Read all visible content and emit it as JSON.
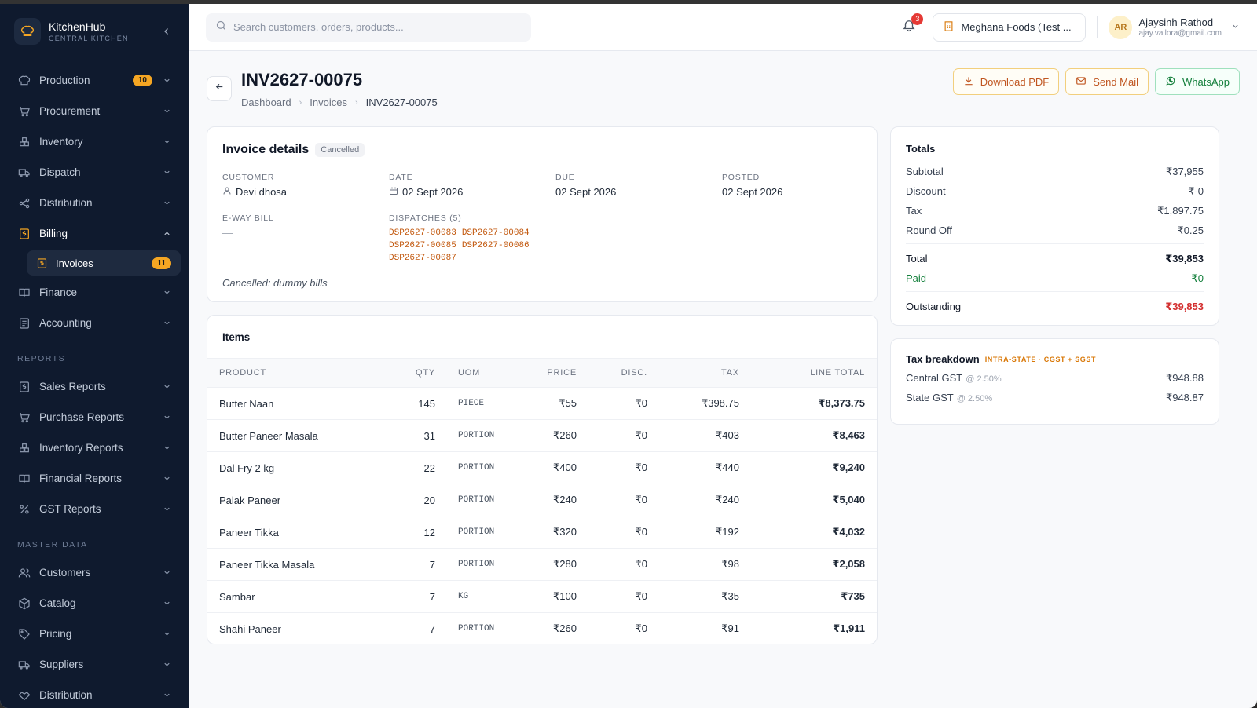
{
  "brand": {
    "name": "KitchenHub",
    "sub": "CENTRAL KITCHEN"
  },
  "sidebar": {
    "items": [
      {
        "label": "Production",
        "badge": "10"
      },
      {
        "label": "Procurement"
      },
      {
        "label": "Inventory"
      },
      {
        "label": "Dispatch"
      },
      {
        "label": "Distribution"
      },
      {
        "label": "Billing"
      },
      {
        "label": "Finance"
      },
      {
        "label": "Accounting"
      }
    ],
    "billing_sub": {
      "label": "Invoices",
      "badge": "11"
    },
    "reports_label": "REPORTS",
    "reports": [
      {
        "label": "Sales Reports"
      },
      {
        "label": "Purchase Reports"
      },
      {
        "label": "Inventory Reports"
      },
      {
        "label": "Financial Reports"
      },
      {
        "label": "GST Reports"
      }
    ],
    "master_label": "MASTER DATA",
    "master": [
      {
        "label": "Customers"
      },
      {
        "label": "Catalog"
      },
      {
        "label": "Pricing"
      },
      {
        "label": "Suppliers"
      },
      {
        "label": "Distribution"
      }
    ]
  },
  "topbar": {
    "search_placeholder": "Search customers, orders, products...",
    "notif_count": "3",
    "org": "Meghana Foods (Test ...",
    "user_initials": "AR",
    "user_name": "Ajaysinh Rathod",
    "user_email": "ajay.vailora@gmail.com"
  },
  "page": {
    "title": "INV2627-00075",
    "breadcrumb": [
      "Dashboard",
      "Invoices",
      "INV2627-00075"
    ],
    "actions": {
      "pdf": "Download PDF",
      "mail": "Send Mail",
      "whatsapp": "WhatsApp"
    }
  },
  "details": {
    "title": "Invoice details",
    "status": "Cancelled",
    "customer_label": "CUSTOMER",
    "customer": "Devi dhosa",
    "date_label": "DATE",
    "date": "02 Sept 2026",
    "due_label": "DUE",
    "due": "02 Sept 2026",
    "posted_label": "POSTED",
    "posted": "02 Sept 2026",
    "eway_label": "E-WAY BILL",
    "eway": "—",
    "dispatches_label": "DISPATCHES (5)",
    "dispatches": [
      "DSP2627-00083",
      "DSP2627-00084",
      "DSP2627-00085",
      "DSP2627-00086",
      "DSP2627-00087"
    ],
    "note": "Cancelled: dummy bills"
  },
  "items": {
    "title": "Items",
    "headers": {
      "product": "PRODUCT",
      "qty": "QTY",
      "uom": "UOM",
      "price": "PRICE",
      "disc": "DISC.",
      "tax": "TAX",
      "total": "LINE TOTAL"
    },
    "rows": [
      {
        "product": "Butter Naan",
        "qty": "145",
        "uom": "PIECE",
        "price": "₹55",
        "disc": "₹0",
        "tax": "₹398.75",
        "total": "₹8,373.75"
      },
      {
        "product": "Butter Paneer Masala",
        "qty": "31",
        "uom": "PORTION",
        "price": "₹260",
        "disc": "₹0",
        "tax": "₹403",
        "total": "₹8,463"
      },
      {
        "product": "Dal Fry 2 kg",
        "qty": "22",
        "uom": "PORTION",
        "price": "₹400",
        "disc": "₹0",
        "tax": "₹440",
        "total": "₹9,240"
      },
      {
        "product": "Palak Paneer",
        "qty": "20",
        "uom": "PORTION",
        "price": "₹240",
        "disc": "₹0",
        "tax": "₹240",
        "total": "₹5,040"
      },
      {
        "product": "Paneer Tikka",
        "qty": "12",
        "uom": "PORTION",
        "price": "₹320",
        "disc": "₹0",
        "tax": "₹192",
        "total": "₹4,032"
      },
      {
        "product": "Paneer Tikka Masala",
        "qty": "7",
        "uom": "PORTION",
        "price": "₹280",
        "disc": "₹0",
        "tax": "₹98",
        "total": "₹2,058"
      },
      {
        "product": "Sambar",
        "qty": "7",
        "uom": "KG",
        "price": "₹100",
        "disc": "₹0",
        "tax": "₹35",
        "total": "₹735"
      },
      {
        "product": "Shahi Paneer",
        "qty": "7",
        "uom": "PORTION",
        "price": "₹260",
        "disc": "₹0",
        "tax": "₹91",
        "total": "₹1,911"
      }
    ]
  },
  "totals": {
    "title": "Totals",
    "subtotal_label": "Subtotal",
    "subtotal": "₹37,955",
    "discount_label": "Discount",
    "discount": "₹-0",
    "tax_label": "Tax",
    "tax": "₹1,897.75",
    "roundoff_label": "Round Off",
    "roundoff": "₹0.25",
    "total_label": "Total",
    "total": "₹39,853",
    "paid_label": "Paid",
    "paid": "₹0",
    "outstanding_label": "Outstanding",
    "outstanding": "₹39,853"
  },
  "tax_breakdown": {
    "title": "Tax breakdown",
    "tag": "INTRA-STATE · CGST + SGST",
    "rows": [
      {
        "label": "Central GST",
        "rate": "@ 2.50%",
        "value": "₹948.88"
      },
      {
        "label": "State GST",
        "rate": "@ 2.50%",
        "value": "₹948.87"
      }
    ]
  },
  "colors": {
    "sidebar_bg": "#0f1a2e",
    "accent": "#f5a623",
    "danger": "#d32f2f",
    "success": "#15803d"
  }
}
